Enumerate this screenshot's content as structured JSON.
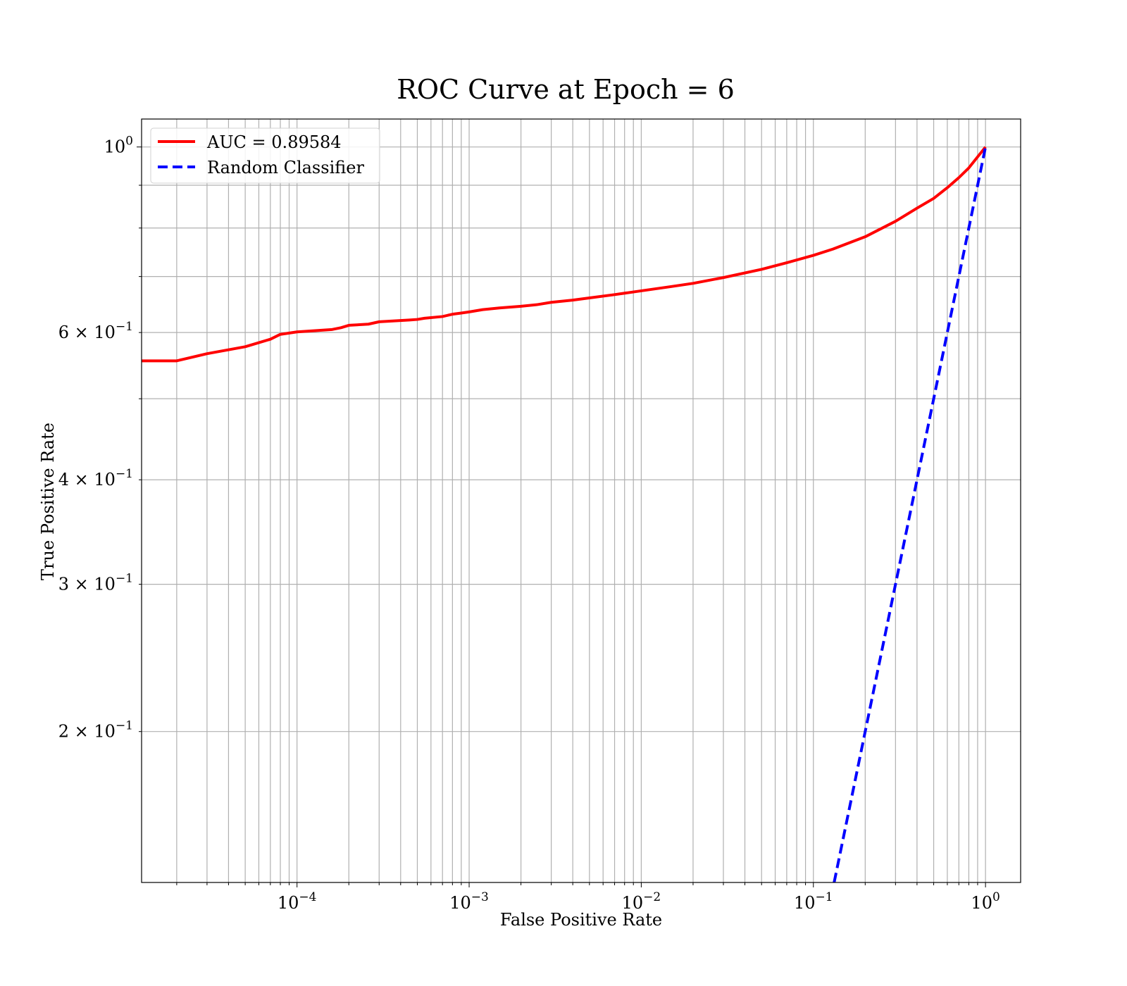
{
  "chart_data": {
    "type": "line",
    "title": "ROC Curve at Epoch = 6",
    "xlabel": "False Positive Rate",
    "ylabel": "True Positive Rate",
    "xscale": "log",
    "yscale": "log",
    "xlim": [
      1.25e-05,
      1.6
    ],
    "ylim": [
      0.132,
      1.08
    ],
    "grid": true,
    "grid_minor": true,
    "legend_position": "top-left",
    "xticks": [
      {
        "value": 0.0001,
        "base": "10",
        "exp": "−4"
      },
      {
        "value": 0.001,
        "base": "10",
        "exp": "−3"
      },
      {
        "value": 0.01,
        "base": "10",
        "exp": "−2"
      },
      {
        "value": 0.1,
        "base": "10",
        "exp": "−1"
      },
      {
        "value": 1,
        "base": "10",
        "exp": "0"
      }
    ],
    "yticks": [
      {
        "value": 1,
        "base": "10",
        "exp": "0"
      },
      {
        "value": 0.6,
        "base": "6 × 10",
        "exp": "−1"
      },
      {
        "value": 0.4,
        "base": "4 × 10",
        "exp": "−1"
      },
      {
        "value": 0.3,
        "base": "3 × 10",
        "exp": "−1"
      },
      {
        "value": 0.2,
        "base": "2 × 10",
        "exp": "−1"
      }
    ],
    "series": [
      {
        "name": "AUC = 0.89584",
        "color": "#ff0000",
        "style": "solid",
        "x": [
          1.25e-05,
          2e-05,
          3e-05,
          5e-05,
          7e-05,
          8e-05,
          0.0001,
          0.00016,
          0.00018,
          0.0002,
          0.00026,
          0.0003,
          0.00045,
          0.0005,
          0.00055,
          0.0007,
          0.0008,
          0.0009,
          0.001,
          0.0012,
          0.0015,
          0.002,
          0.0025,
          0.003,
          0.004,
          0.005,
          0.007,
          0.01,
          0.015,
          0.02,
          0.03,
          0.05,
          0.07,
          0.1,
          0.13,
          0.2,
          0.3,
          0.4,
          0.5,
          0.6,
          0.7,
          0.8,
          1.0
        ],
        "y": [
          0.555,
          0.555,
          0.566,
          0.577,
          0.589,
          0.597,
          0.601,
          0.605,
          0.608,
          0.612,
          0.614,
          0.618,
          0.621,
          0.622,
          0.624,
          0.627,
          0.631,
          0.633,
          0.635,
          0.639,
          0.642,
          0.645,
          0.648,
          0.652,
          0.656,
          0.66,
          0.666,
          0.673,
          0.681,
          0.687,
          0.698,
          0.714,
          0.727,
          0.742,
          0.755,
          0.781,
          0.815,
          0.845,
          0.868,
          0.894,
          0.919,
          0.944,
          1.0
        ]
      },
      {
        "name": "Random Classifier",
        "color": "#0000ff",
        "style": "dashed",
        "x": [
          0.132,
          1.0
        ],
        "y": [
          0.132,
          1.0
        ]
      }
    ]
  }
}
